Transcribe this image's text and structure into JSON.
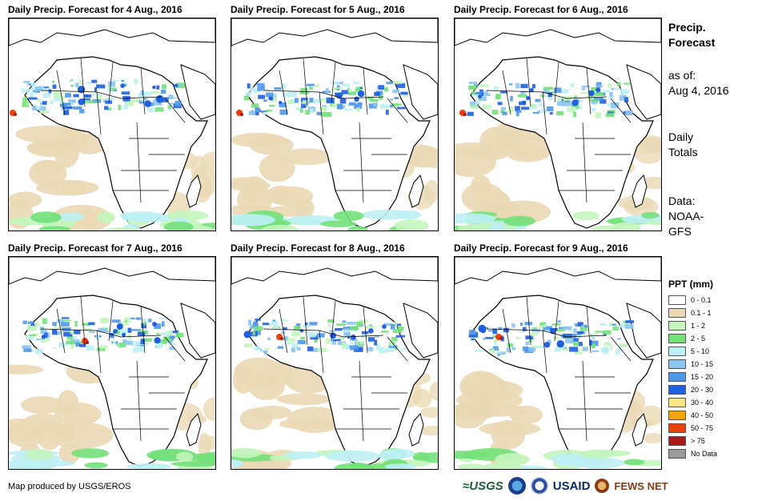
{
  "panels": [
    {
      "title": "Daily Precip. Forecast for 4 Aug., 2016",
      "variant": 0
    },
    {
      "title": "Daily Precip. Forecast for 5 Aug., 2016",
      "variant": 1
    },
    {
      "title": "Daily Precip. Forecast for 6 Aug., 2016",
      "variant": 2
    },
    {
      "title": "Daily Precip. Forecast for 7 Aug., 2016",
      "variant": 3
    },
    {
      "title": "Daily Precip. Forecast for 8 Aug., 2016",
      "variant": 4
    },
    {
      "title": "Daily Precip. Forecast for 9 Aug., 2016",
      "variant": 5
    }
  ],
  "sidebar": {
    "title_line1": "Precip.",
    "title_line2": "Forecast",
    "asof_label": "as of:",
    "asof_date": "Aug 4, 2016",
    "totals_line1": "Daily",
    "totals_line2": "Totals",
    "data_label": "Data:",
    "data_source1": "NOAA-",
    "data_source2": "GFS"
  },
  "legend": {
    "title": "PPT (mm)",
    "items": [
      {
        "label": "0 - 0.1",
        "color": "#ffffff"
      },
      {
        "label": "0.1 - 1",
        "color": "#ead8b4"
      },
      {
        "label": "1 - 2",
        "color": "#c3f5bd"
      },
      {
        "label": "2 - 5",
        "color": "#73e07a"
      },
      {
        "label": "5 - 10",
        "color": "#bdf0f5"
      },
      {
        "label": "10 - 15",
        "color": "#8cc4f0"
      },
      {
        "label": "15 - 20",
        "color": "#4f97ea"
      },
      {
        "label": "20 - 30",
        "color": "#1f5fe0"
      },
      {
        "label": "30 - 40",
        "color": "#fae682"
      },
      {
        "label": "40 - 50",
        "color": "#f5a300"
      },
      {
        "label": "50 - 75",
        "color": "#ee3e0a"
      },
      {
        "label": "> 75",
        "color": "#a71a1a"
      },
      {
        "label": "No Data",
        "color": "#9a9a9a"
      }
    ]
  },
  "footer": {
    "credit": "Map produced by USGS/EROS",
    "logo_usgs": "≈USGS",
    "logo_usaid": "USAID",
    "logo_fews": "FEWS NET"
  }
}
